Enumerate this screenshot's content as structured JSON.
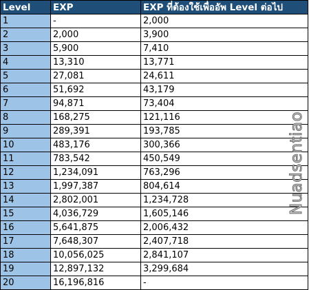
{
  "table": {
    "headers": [
      "Level",
      "EXP",
      "EXP ที่ต้องใช้เพื่ออัพ Level ต่อไป"
    ],
    "rows": [
      [
        "1",
        "-",
        "2,000"
      ],
      [
        "2",
        "2,000",
        "3,900"
      ],
      [
        "3",
        "5,900",
        "7,410"
      ],
      [
        "4",
        "13,310",
        "13,771"
      ],
      [
        "5",
        "27,081",
        "24,611"
      ],
      [
        "6",
        "51,692",
        "43,179"
      ],
      [
        "7",
        "94,871",
        "73,404"
      ],
      [
        "8",
        "168,275",
        "121,116"
      ],
      [
        "9",
        "289,391",
        "193,785"
      ],
      [
        "10",
        "483,176",
        "300,366"
      ],
      [
        "11",
        "783,542",
        "450,549"
      ],
      [
        "12",
        "1,234,091",
        "763,296"
      ],
      [
        "13",
        "1,997,387",
        "804,614"
      ],
      [
        "14",
        "2,802,001",
        "1,234,728"
      ],
      [
        "15",
        "4,036,729",
        "1,605,146"
      ],
      [
        "16",
        "5,641,875",
        "2,006,432"
      ],
      [
        "17",
        "7,648,307",
        "2,407,718"
      ],
      [
        "18",
        "10,056,025",
        "2,841,107"
      ],
      [
        "19",
        "12,897,132",
        "3,299,684"
      ],
      [
        "20",
        "16,196,816",
        "-"
      ]
    ]
  },
  "watermark": {
    "text": "Nuadsentiao"
  },
  "colors": {
    "header_bg": "#1f4e79",
    "header_text": "#ffffff",
    "level_cell_bg": "#9dc3e6",
    "cell_bg": "#ffffff",
    "border": "#000000"
  }
}
